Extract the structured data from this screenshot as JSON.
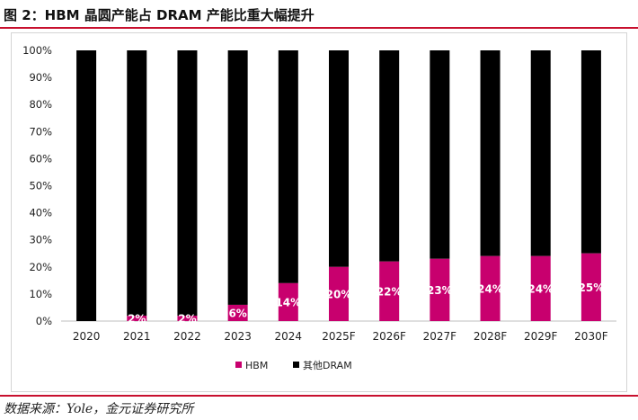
{
  "title": "图 2：HBM 晶圆产能占 DRAM 产能比重大幅提升",
  "source": "数据来源：Yole，金元证券研究所",
  "colors": {
    "hbm": "#c8006e",
    "other": "#000000",
    "accent_rule": "#c8102e",
    "label_text": "#ffffff"
  },
  "chart_data": {
    "type": "bar",
    "stacked": true,
    "categories": [
      "2020",
      "2021",
      "2022",
      "2023",
      "2024",
      "2025F",
      "2026F",
      "2027F",
      "2028F",
      "2029F",
      "2030F"
    ],
    "series": [
      {
        "name": "HBM",
        "values": [
          0,
          2,
          2,
          6,
          14,
          20,
          22,
          23,
          24,
          24,
          25
        ]
      },
      {
        "name": "其他DRAM",
        "values": [
          100,
          98,
          98,
          94,
          86,
          80,
          78,
          77,
          76,
          76,
          75
        ]
      }
    ],
    "data_labels": [
      "",
      "2%",
      "2%",
      "6%",
      "14%",
      "20%",
      "22%",
      "23%",
      "24%",
      "24%",
      "25%"
    ],
    "y_ticks": [
      "0%",
      "10%",
      "20%",
      "30%",
      "40%",
      "50%",
      "60%",
      "70%",
      "80%",
      "90%",
      "100%"
    ],
    "ylim": [
      0,
      100
    ],
    "legend_position": "bottom"
  }
}
